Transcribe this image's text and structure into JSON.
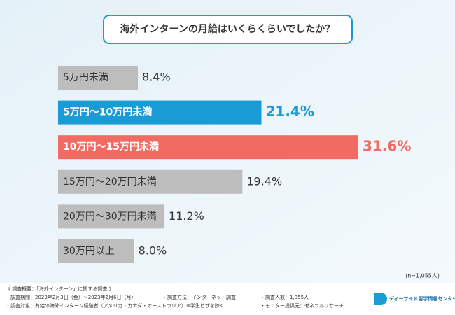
{
  "chart_data": {
    "type": "bar",
    "orientation": "horizontal",
    "title": "海外インターンの月給はいくらくらいでしたか？",
    "categories": [
      "5万円未満",
      "5万円～10万円未満",
      "10万円～15万円未満",
      "15万円～20万円未満",
      "20万円～30万円未満",
      "30万円以上"
    ],
    "values": [
      8.4,
      21.4,
      31.6,
      19.4,
      11.2,
      8.0
    ],
    "value_labels": [
      "8.4%",
      "21.4%",
      "31.6%",
      "19.4%",
      "11.2%",
      "8.0%"
    ],
    "colors": [
      "#bdbdbd",
      "#1b9bd5",
      "#f26b63",
      "#bdbdbd",
      "#bdbdbd",
      "#bdbdbd"
    ],
    "xlim": [
      0,
      40
    ],
    "note": "(n=1,055人)"
  },
  "footer": {
    "heading": "《 調査概要：「海外インターン」に関する調査 》",
    "items": [
      "・調査期間：2023年2月3日（金）～2023年2月6日（月）",
      "・調査方法：インターネット調査",
      "・調査人数：1,055人",
      "・調査対象：有給の海外インターン経験者（アメリカ・カナダ・オーストラリア）※学生ビザを除く",
      "・モニター提供元：ゼネラルリサーチ"
    ],
    "logo": "ディーサイド留学情報センター"
  }
}
